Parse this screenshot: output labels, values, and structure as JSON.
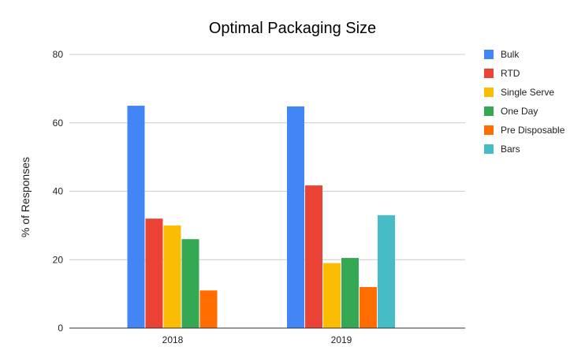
{
  "chart_data": {
    "type": "bar",
    "title": "Optimal Packaging Size",
    "xlabel": "",
    "ylabel": "% of Responses",
    "ylim": [
      0,
      80
    ],
    "yticks": [
      0,
      20,
      40,
      60,
      80
    ],
    "grid": true,
    "legend_position": "right",
    "categories": [
      "2018",
      "2019"
    ],
    "series": [
      {
        "name": "Bulk",
        "color": "#4285f4",
        "values": [
          65,
          64.8
        ]
      },
      {
        "name": "RTD",
        "color": "#ea4335",
        "values": [
          32,
          41.7
        ]
      },
      {
        "name": "Single Serve",
        "color": "#fbbc04",
        "values": [
          30,
          19
        ]
      },
      {
        "name": "One Day",
        "color": "#34a853",
        "values": [
          26,
          20.5
        ]
      },
      {
        "name": "Pre Disposable",
        "color": "#ff6d01",
        "values": [
          11,
          12
        ]
      },
      {
        "name": "Bars",
        "color": "#46bdc6",
        "values": [
          null,
          33
        ]
      }
    ]
  }
}
